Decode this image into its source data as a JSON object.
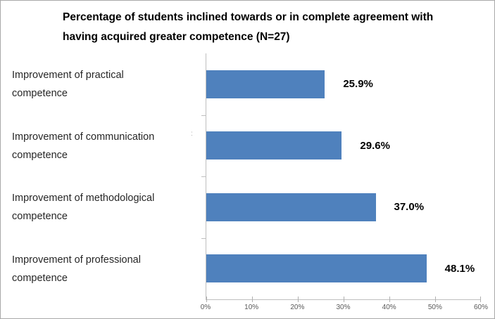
{
  "chart_data": {
    "type": "bar",
    "orientation": "horizontal",
    "title": "Percentage of students inclined towards or in complete agreement with having acquired greater competence (N=27)",
    "categories": [
      "Improvement of practical competence",
      "Improvement of communication competence",
      "Improvement of methodological competence",
      "Improvement of professional competence"
    ],
    "values": [
      25.9,
      29.6,
      37.0,
      48.1
    ],
    "data_labels": [
      "25.9%",
      "29.6%",
      "37.0%",
      "48.1%"
    ],
    "xlim": [
      0,
      60
    ],
    "x_ticks": [
      "0%",
      "10%",
      "20%",
      "30%",
      "40%",
      "50%",
      "60%"
    ],
    "xlabel": "",
    "ylabel": "",
    "grid": false,
    "legend": false,
    "bar_color": "#4F81BD",
    "axis_line_color": "#BFBFBF",
    "tick_label_color": "#595959",
    "data_label_color": "#000000"
  },
  "ui": {
    "title_line1": "Percentage of students inclined towards or in complete agreement with",
    "title_line2": "having acquired greater competence (N=27)",
    "category_rows": [
      {
        "line1": "Improvement of practical",
        "line2": "competence"
      },
      {
        "line1": "Improvement of communication",
        "line2": "competence"
      },
      {
        "line1": "Improvement of methodological",
        "line2": "competence"
      },
      {
        "line1": "Improvement of professional",
        "line2": "competence"
      }
    ],
    "stray_mark": ":"
  }
}
